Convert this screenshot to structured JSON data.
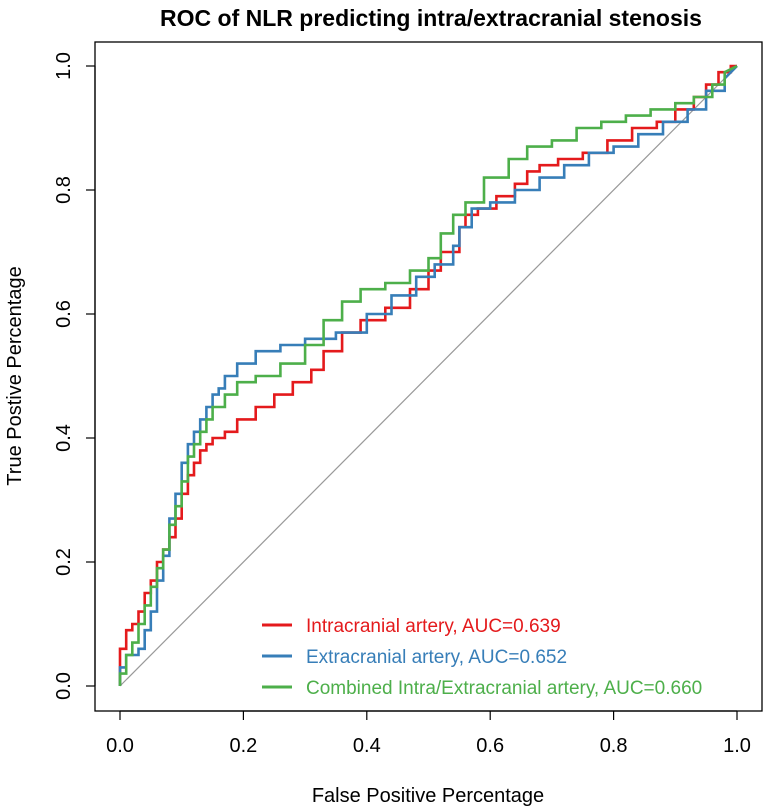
{
  "chart_data": {
    "type": "line",
    "title": "ROC of NLR predicting intra/extracranial stenosis",
    "xlabel": "False Positive Percentage",
    "ylabel": "True Postive Percentage",
    "xlim": [
      0,
      1
    ],
    "ylim": [
      0,
      1
    ],
    "x_ticks": [
      "0.0",
      "0.2",
      "0.4",
      "0.6",
      "0.8",
      "1.0"
    ],
    "y_ticks": [
      "0.0",
      "0.2",
      "0.4",
      "0.6",
      "0.8",
      "1.0"
    ],
    "grid": false,
    "legend_position": "bottom-right",
    "reference_line": {
      "name": "chance",
      "x": [
        0,
        1
      ],
      "y": [
        0,
        1
      ],
      "color": "#999999"
    },
    "series": [
      {
        "name": "Intracranial artery, AUC=0.639",
        "color": "#e41a1c",
        "x": [
          0,
          0,
          0.01,
          0.01,
          0.02,
          0.02,
          0.03,
          0.03,
          0.04,
          0.04,
          0.05,
          0.05,
          0.06,
          0.06,
          0.07,
          0.07,
          0.08,
          0.08,
          0.09,
          0.09,
          0.1,
          0.1,
          0.11,
          0.11,
          0.12,
          0.12,
          0.13,
          0.13,
          0.14,
          0.14,
          0.15,
          0.15,
          0.17,
          0.17,
          0.19,
          0.19,
          0.22,
          0.22,
          0.25,
          0.25,
          0.28,
          0.28,
          0.31,
          0.31,
          0.33,
          0.33,
          0.36,
          0.36,
          0.39,
          0.39,
          0.43,
          0.43,
          0.47,
          0.47,
          0.5,
          0.5,
          0.52,
          0.52,
          0.55,
          0.55,
          0.56,
          0.56,
          0.58,
          0.58,
          0.61,
          0.61,
          0.64,
          0.64,
          0.66,
          0.66,
          0.68,
          0.68,
          0.71,
          0.71,
          0.75,
          0.75,
          0.79,
          0.79,
          0.83,
          0.83,
          0.87,
          0.87,
          0.9,
          0.9,
          0.93,
          0.93,
          0.95,
          0.95,
          0.97,
          0.97,
          0.99,
          0.99,
          1.0
        ],
        "y": [
          0,
          0.06,
          0.06,
          0.09,
          0.09,
          0.1,
          0.1,
          0.12,
          0.12,
          0.15,
          0.15,
          0.17,
          0.17,
          0.2,
          0.2,
          0.22,
          0.22,
          0.24,
          0.24,
          0.27,
          0.27,
          0.31,
          0.31,
          0.34,
          0.34,
          0.36,
          0.36,
          0.38,
          0.38,
          0.39,
          0.39,
          0.4,
          0.4,
          0.41,
          0.41,
          0.43,
          0.43,
          0.45,
          0.45,
          0.47,
          0.47,
          0.49,
          0.49,
          0.51,
          0.51,
          0.54,
          0.54,
          0.57,
          0.57,
          0.59,
          0.59,
          0.61,
          0.61,
          0.64,
          0.64,
          0.67,
          0.67,
          0.7,
          0.7,
          0.74,
          0.74,
          0.76,
          0.76,
          0.77,
          0.77,
          0.79,
          0.79,
          0.81,
          0.81,
          0.83,
          0.83,
          0.84,
          0.84,
          0.85,
          0.85,
          0.86,
          0.86,
          0.88,
          0.88,
          0.9,
          0.9,
          0.91,
          0.91,
          0.93,
          0.93,
          0.95,
          0.95,
          0.97,
          0.97,
          0.99,
          0.99,
          1.0,
          1.0
        ]
      },
      {
        "name": "Extracranial artery, AUC=0.652",
        "color": "#377eb8",
        "x": [
          0,
          0,
          0.01,
          0.01,
          0.03,
          0.03,
          0.04,
          0.04,
          0.05,
          0.05,
          0.06,
          0.06,
          0.07,
          0.07,
          0.08,
          0.08,
          0.09,
          0.09,
          0.1,
          0.1,
          0.11,
          0.11,
          0.12,
          0.12,
          0.13,
          0.13,
          0.14,
          0.14,
          0.15,
          0.15,
          0.16,
          0.16,
          0.17,
          0.17,
          0.19,
          0.19,
          0.22,
          0.22,
          0.26,
          0.26,
          0.3,
          0.3,
          0.35,
          0.35,
          0.4,
          0.4,
          0.44,
          0.44,
          0.48,
          0.48,
          0.51,
          0.51,
          0.54,
          0.54,
          0.55,
          0.55,
          0.57,
          0.57,
          0.6,
          0.6,
          0.64,
          0.64,
          0.68,
          0.68,
          0.72,
          0.72,
          0.76,
          0.76,
          0.8,
          0.8,
          0.84,
          0.84,
          0.88,
          0.88,
          0.92,
          0.92,
          0.95,
          0.95,
          0.98,
          0.98,
          1.0
        ],
        "y": [
          0,
          0.03,
          0.03,
          0.05,
          0.05,
          0.06,
          0.06,
          0.09,
          0.09,
          0.12,
          0.12,
          0.17,
          0.17,
          0.21,
          0.21,
          0.27,
          0.27,
          0.31,
          0.31,
          0.36,
          0.36,
          0.39,
          0.39,
          0.41,
          0.41,
          0.43,
          0.43,
          0.45,
          0.45,
          0.47,
          0.47,
          0.48,
          0.48,
          0.5,
          0.5,
          0.52,
          0.52,
          0.54,
          0.54,
          0.55,
          0.55,
          0.56,
          0.56,
          0.57,
          0.57,
          0.6,
          0.6,
          0.63,
          0.63,
          0.66,
          0.66,
          0.68,
          0.68,
          0.71,
          0.71,
          0.74,
          0.74,
          0.77,
          0.77,
          0.78,
          0.78,
          0.8,
          0.8,
          0.82,
          0.82,
          0.84,
          0.84,
          0.86,
          0.86,
          0.87,
          0.87,
          0.89,
          0.89,
          0.91,
          0.91,
          0.93,
          0.93,
          0.96,
          0.96,
          0.98,
          1.0
        ]
      },
      {
        "name": "Combined Intra/Extracranial artery, AUC=0.660",
        "color": "#4daf4a",
        "x": [
          0,
          0,
          0.01,
          0.01,
          0.02,
          0.02,
          0.03,
          0.03,
          0.04,
          0.04,
          0.05,
          0.05,
          0.06,
          0.06,
          0.07,
          0.07,
          0.08,
          0.08,
          0.09,
          0.09,
          0.1,
          0.1,
          0.11,
          0.11,
          0.12,
          0.12,
          0.13,
          0.13,
          0.14,
          0.14,
          0.15,
          0.15,
          0.17,
          0.17,
          0.19,
          0.19,
          0.22,
          0.22,
          0.26,
          0.26,
          0.3,
          0.3,
          0.33,
          0.33,
          0.36,
          0.36,
          0.39,
          0.39,
          0.43,
          0.43,
          0.47,
          0.47,
          0.5,
          0.5,
          0.52,
          0.52,
          0.54,
          0.54,
          0.56,
          0.56,
          0.59,
          0.59,
          0.63,
          0.63,
          0.66,
          0.66,
          0.7,
          0.7,
          0.74,
          0.74,
          0.78,
          0.78,
          0.82,
          0.82,
          0.86,
          0.86,
          0.9,
          0.9,
          0.93,
          0.93,
          0.96,
          0.96,
          0.98,
          0.98,
          1.0
        ],
        "y": [
          0,
          0.02,
          0.02,
          0.05,
          0.05,
          0.07,
          0.07,
          0.1,
          0.1,
          0.13,
          0.13,
          0.16,
          0.16,
          0.19,
          0.19,
          0.22,
          0.22,
          0.26,
          0.26,
          0.29,
          0.29,
          0.33,
          0.33,
          0.37,
          0.37,
          0.39,
          0.39,
          0.41,
          0.41,
          0.43,
          0.43,
          0.45,
          0.45,
          0.47,
          0.47,
          0.49,
          0.49,
          0.5,
          0.5,
          0.52,
          0.52,
          0.55,
          0.55,
          0.59,
          0.59,
          0.62,
          0.62,
          0.64,
          0.64,
          0.65,
          0.65,
          0.67,
          0.67,
          0.69,
          0.69,
          0.73,
          0.73,
          0.76,
          0.76,
          0.78,
          0.78,
          0.82,
          0.82,
          0.85,
          0.85,
          0.87,
          0.87,
          0.88,
          0.88,
          0.9,
          0.9,
          0.91,
          0.91,
          0.92,
          0.92,
          0.93,
          0.93,
          0.94,
          0.94,
          0.95,
          0.95,
          0.97,
          0.97,
          0.99,
          1.0
        ]
      }
    ]
  }
}
